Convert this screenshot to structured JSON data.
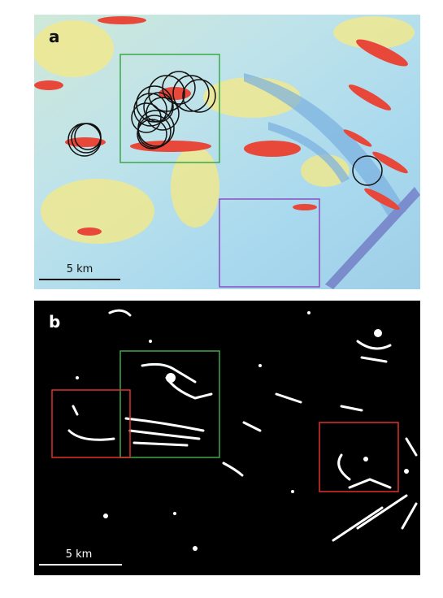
{
  "panels": [
    {
      "label": "a",
      "scale_bar": "5 km"
    },
    {
      "label": "b",
      "scale_bar": "5 km"
    }
  ]
}
